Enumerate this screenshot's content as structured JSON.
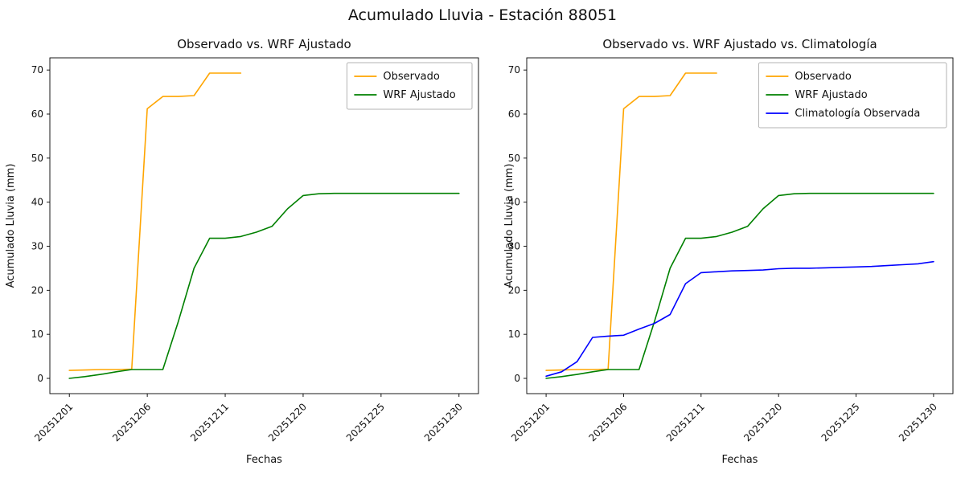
{
  "figure": {
    "title": "Acumulado Lluvia - Estación 88051",
    "background_color": "#ffffff",
    "text_color": "#111111"
  },
  "chart_data": [
    {
      "type": "line",
      "title": "Observado vs. WRF Ajustado",
      "xlabel": "Fechas",
      "ylabel": "Acumulado Lluvia (mm)",
      "ylim": [
        0,
        70
      ],
      "yticks": [
        0,
        10,
        20,
        30,
        40,
        50,
        60,
        70
      ],
      "xtick_positions": [
        0,
        5,
        10,
        15,
        20,
        25
      ],
      "xtick_labels": [
        "20251201",
        "20251206",
        "20251211",
        "20251220",
        "20251225",
        "20251230"
      ],
      "xtick_rotation": 45,
      "grid": false,
      "legend_position": "upper right",
      "series": [
        {
          "name": "Observado",
          "color": "#ffa500",
          "x": [
            0,
            1,
            2,
            3,
            4,
            5,
            6,
            7,
            8,
            9,
            10,
            11
          ],
          "y": [
            1.8,
            1.9,
            2.0,
            2.0,
            2.1,
            61.2,
            64.0,
            64.0,
            64.2,
            69.3,
            69.3,
            69.3
          ]
        },
        {
          "name": "WRF Ajustado",
          "color": "#008000",
          "x": [
            0,
            1,
            2,
            3,
            4,
            5,
            6,
            7,
            8,
            9,
            10,
            11,
            12,
            13,
            14,
            15,
            16,
            17,
            18,
            19,
            20,
            21,
            22,
            23,
            24,
            25
          ],
          "y": [
            0.0,
            0.4,
            0.9,
            1.5,
            2.0,
            2.0,
            2.0,
            13.0,
            25.0,
            31.8,
            31.8,
            32.2,
            33.2,
            34.5,
            38.5,
            41.5,
            41.9,
            42.0,
            42.0,
            42.0,
            42.0,
            42.0,
            42.0,
            42.0,
            42.0,
            42.0
          ]
        }
      ]
    },
    {
      "type": "line",
      "title": "Observado vs. WRF Ajustado vs. Climatología",
      "xlabel": "Fechas",
      "ylabel": "Acumulado Lluvia (mm)",
      "ylim": [
        0,
        70
      ],
      "yticks": [
        0,
        10,
        20,
        30,
        40,
        50,
        60,
        70
      ],
      "xtick_positions": [
        0,
        5,
        10,
        15,
        20,
        25
      ],
      "xtick_labels": [
        "20251201",
        "20251206",
        "20251211",
        "20251220",
        "20251225",
        "20251230"
      ],
      "xtick_rotation": 45,
      "grid": false,
      "legend_position": "upper right",
      "series": [
        {
          "name": "Observado",
          "color": "#ffa500",
          "x": [
            0,
            1,
            2,
            3,
            4,
            5,
            6,
            7,
            8,
            9,
            10,
            11
          ],
          "y": [
            1.8,
            1.9,
            2.0,
            2.0,
            2.1,
            61.2,
            64.0,
            64.0,
            64.2,
            69.3,
            69.3,
            69.3
          ]
        },
        {
          "name": "WRF Ajustado",
          "color": "#008000",
          "x": [
            0,
            1,
            2,
            3,
            4,
            5,
            6,
            7,
            8,
            9,
            10,
            11,
            12,
            13,
            14,
            15,
            16,
            17,
            18,
            19,
            20,
            21,
            22,
            23,
            24,
            25
          ],
          "y": [
            0.0,
            0.4,
            0.9,
            1.5,
            2.0,
            2.0,
            2.0,
            13.0,
            25.0,
            31.8,
            31.8,
            32.2,
            33.2,
            34.5,
            38.5,
            41.5,
            41.9,
            42.0,
            42.0,
            42.0,
            42.0,
            42.0,
            42.0,
            42.0,
            42.0,
            42.0
          ]
        },
        {
          "name": "Climatología Observada",
          "color": "#0000ff",
          "x": [
            0,
            1,
            2,
            3,
            4,
            5,
            6,
            7,
            8,
            9,
            10,
            11,
            12,
            13,
            14,
            15,
            16,
            17,
            18,
            19,
            20,
            21,
            22,
            23,
            24,
            25
          ],
          "y": [
            0.5,
            1.5,
            3.8,
            9.3,
            9.6,
            9.8,
            11.2,
            12.5,
            14.5,
            21.5,
            24.0,
            24.2,
            24.4,
            24.5,
            24.6,
            24.9,
            25.0,
            25.0,
            25.1,
            25.2,
            25.3,
            25.4,
            25.6,
            25.8,
            26.0,
            26.5
          ]
        }
      ]
    }
  ]
}
